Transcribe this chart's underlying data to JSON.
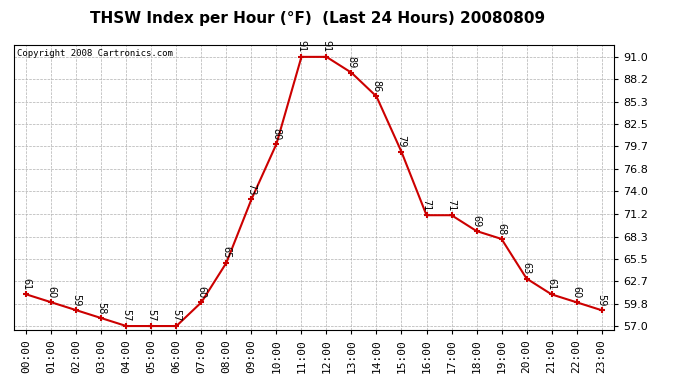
{
  "title": "THSW Index per Hour (°F)  (Last 24 Hours) 20080809",
  "copyright": "Copyright 2008 Cartronics.com",
  "hours": [
    "00:00",
    "01:00",
    "02:00",
    "03:00",
    "04:00",
    "05:00",
    "06:00",
    "07:00",
    "08:00",
    "09:00",
    "10:00",
    "11:00",
    "12:00",
    "13:00",
    "14:00",
    "15:00",
    "16:00",
    "17:00",
    "18:00",
    "19:00",
    "20:00",
    "21:00",
    "22:00",
    "23:00"
  ],
  "values": [
    61,
    60,
    59,
    58,
    57,
    57,
    57,
    60,
    65,
    73,
    80,
    91,
    91,
    89,
    86,
    79,
    71,
    71,
    69,
    68,
    63,
    61,
    60,
    59
  ],
  "line_color": "#cc0000",
  "marker_color": "#cc0000",
  "bg_color": "#ffffff",
  "grid_color": "#b0b0b0",
  "yticks": [
    57.0,
    59.8,
    62.7,
    65.5,
    68.3,
    71.2,
    74.0,
    76.8,
    79.7,
    82.5,
    85.3,
    88.2,
    91.0
  ],
  "ylim": [
    56.5,
    92.5
  ],
  "title_fontsize": 11,
  "tick_fontsize": 8,
  "annot_fontsize": 7,
  "copyright_fontsize": 6.5
}
